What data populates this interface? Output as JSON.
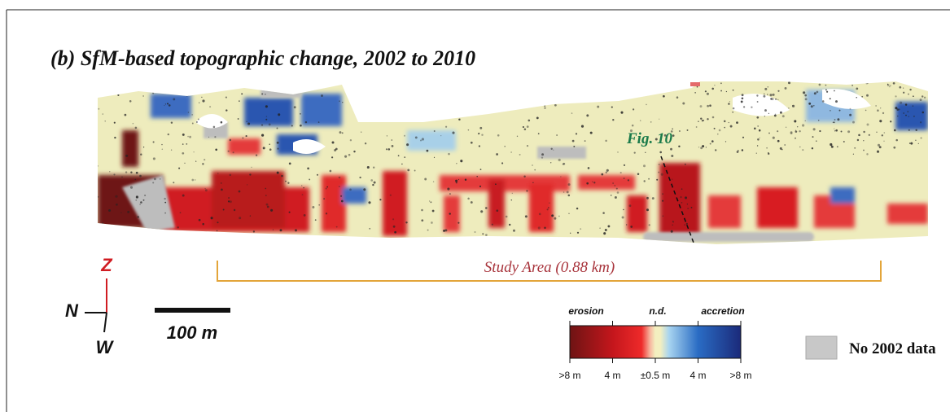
{
  "figure": {
    "title": "(b) SfM-based topographic change, 2002 to 2010",
    "callout": "Fig. 10",
    "study_area": "Study Area (0.88 km)",
    "compass": {
      "up": "Z",
      "left": "N",
      "down": "W"
    },
    "scale_bar": "100 m",
    "legend": {
      "erosion": "erosion",
      "no_data": "n.d.",
      "accretion": "accretion",
      "ticks": [
        ">8 m",
        "4 m",
        "±0.5 m",
        "4 m",
        ">8 m"
      ]
    },
    "no_data_label": "No 2002 data"
  }
}
